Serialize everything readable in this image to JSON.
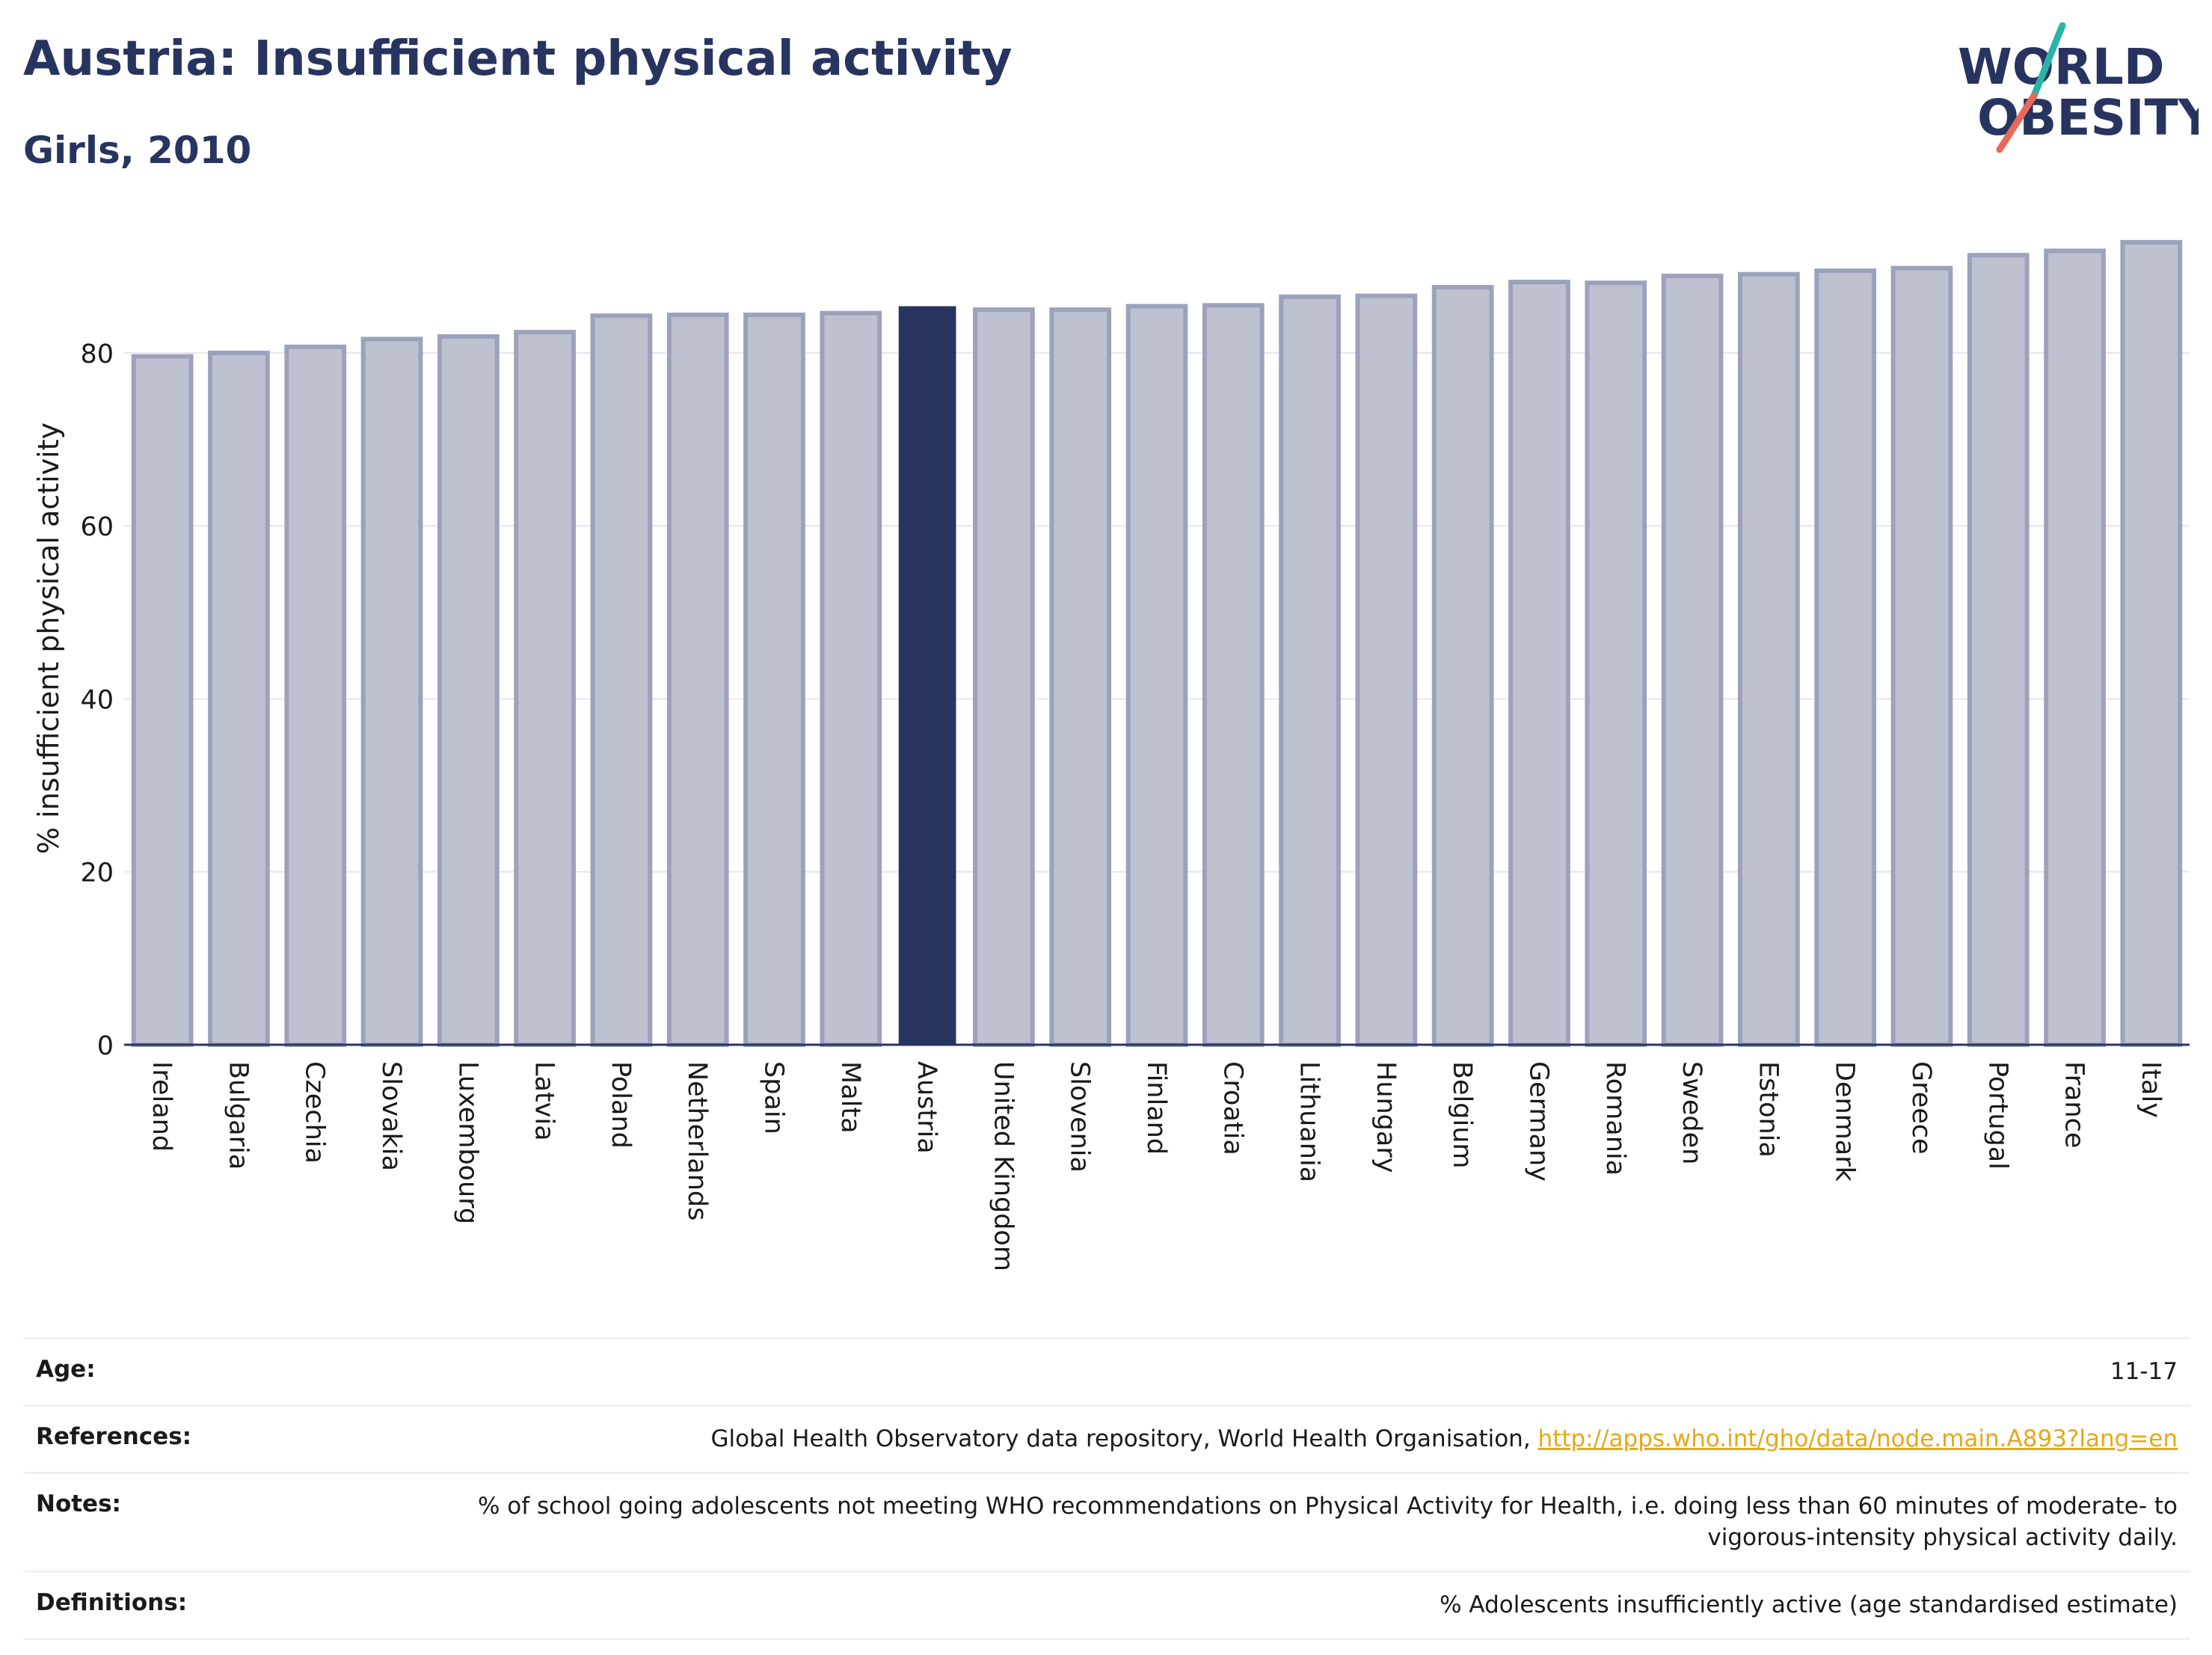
{
  "header": {
    "title": "Austria: Insufficient physical activity",
    "subtitle": "Girls, 2010"
  },
  "logo": {
    "line1": "WORLD",
    "line2": "OBESITY",
    "colors": {
      "text": "#283460",
      "accent_teal": "#2bb3a8",
      "accent_red": "#e8685a"
    }
  },
  "chart_data": {
    "type": "bar",
    "title": "Austria: Insufficient physical activity",
    "subtitle": "Girls, 2010",
    "xlabel": "",
    "ylabel": "% insufficient physical activity",
    "ylim": [
      0,
      94
    ],
    "yticks": [
      0,
      20,
      40,
      60,
      80
    ],
    "grid": true,
    "highlight": "Austria",
    "colors": {
      "bar": "#bdc1d0",
      "bar_border": "#9ca2bb",
      "highlight": "#283460"
    },
    "categories": [
      "Ireland",
      "Bulgaria",
      "Czechia",
      "Slovakia",
      "Luxembourg",
      "Latvia",
      "Poland",
      "Netherlands",
      "Spain",
      "Malta",
      "Austria",
      "United Kingdom",
      "Slovenia",
      "Finland",
      "Croatia",
      "Lithuania",
      "Hungary",
      "Belgium",
      "Germany",
      "Romania",
      "Sweden",
      "Estonia",
      "Denmark",
      "Greece",
      "Portugal",
      "France",
      "Italy"
    ],
    "values": [
      79.6,
      80.0,
      80.7,
      81.6,
      81.9,
      82.4,
      84.3,
      84.4,
      84.4,
      84.6,
      85.4,
      85.0,
      85.0,
      85.4,
      85.5,
      86.5,
      86.6,
      87.6,
      88.2,
      88.1,
      88.9,
      89.1,
      89.5,
      89.8,
      91.3,
      91.8,
      92.8
    ]
  },
  "notes": {
    "age": {
      "label": "Age:",
      "value": "11-17"
    },
    "references": {
      "label": "References:",
      "value": "Global Health Observatory data repository, World Health Organisation, ",
      "link": "http://apps.who.int/gho/data/node.main.A893?lang=en"
    },
    "notes": {
      "label": "Notes:",
      "value": "% of school going adolescents not meeting WHO recommendations on Physical Activity for Health, i.e. doing less than 60 minutes of moderate- to vigorous-intensity physical activity daily."
    },
    "definitions": {
      "label": "Definitions:",
      "value": "% Adolescents insufficiently active (age standardised estimate)"
    }
  }
}
